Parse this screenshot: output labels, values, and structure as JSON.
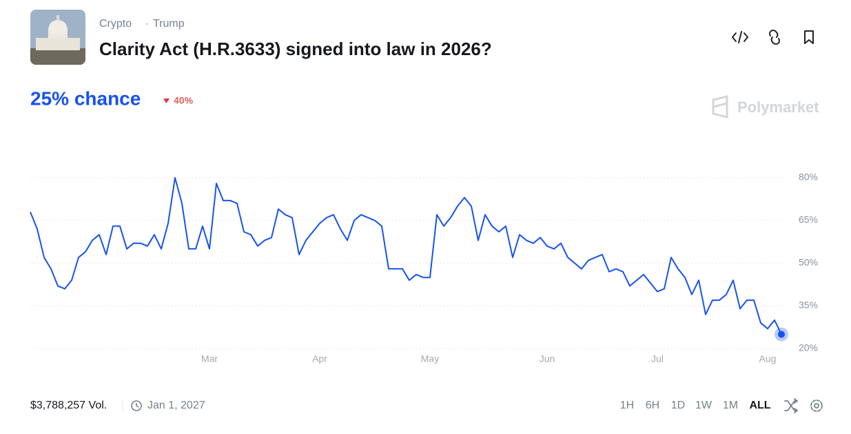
{
  "header": {
    "breadcrumb": [
      "Crypto",
      "Trump"
    ],
    "title": "Clarity Act (H.R.3633) signed into law in 2026?"
  },
  "chance": {
    "label": "25% chance",
    "change": "40%"
  },
  "brand": "Polymarket",
  "chart_data": {
    "type": "line",
    "categories": [
      null,
      null,
      null,
      null,
      null,
      null,
      null,
      null,
      null,
      null,
      null,
      null,
      null,
      null,
      null,
      null,
      null,
      null,
      null,
      null,
      null,
      null,
      null,
      null,
      null,
      null,
      "Mar",
      null,
      null,
      null,
      null,
      null,
      null,
      null,
      null,
      null,
      null,
      null,
      null,
      null,
      null,
      null,
      "Apr",
      null,
      null,
      null,
      null,
      null,
      null,
      null,
      null,
      null,
      null,
      null,
      null,
      null,
      null,
      null,
      "May",
      null,
      null,
      null,
      null,
      null,
      null,
      null,
      null,
      null,
      null,
      null,
      null,
      null,
      null,
      null,
      null,
      "Jun",
      null,
      null,
      null,
      null,
      null,
      null,
      null,
      null,
      null,
      null,
      null,
      null,
      null,
      null,
      null,
      "Jul",
      null,
      null,
      null,
      null,
      null,
      null,
      null,
      null,
      null,
      null,
      null,
      null,
      null,
      null,
      null,
      "Aug",
      null,
      null
    ],
    "series": [
      {
        "color": "#1652f0",
        "values": [
          68,
          62,
          52,
          48,
          42,
          41,
          44,
          52,
          54,
          58,
          60,
          53,
          63,
          63,
          55,
          57,
          57,
          56,
          60,
          55,
          64,
          80,
          71,
          55,
          55,
          63,
          55,
          78,
          72,
          72,
          71,
          61,
          60,
          56,
          58,
          59,
          69,
          67,
          66,
          53,
          58,
          61,
          64,
          66,
          67,
          62,
          58,
          65,
          67,
          66,
          65,
          63,
          48,
          48,
          48,
          44,
          46,
          45,
          45,
          67,
          63,
          66,
          70,
          73,
          70,
          58,
          67,
          63,
          61,
          63,
          52,
          60,
          58,
          57,
          59,
          56,
          55,
          57,
          52,
          50,
          48,
          51,
          52,
          53,
          47,
          48,
          47,
          42,
          44,
          46,
          43,
          40,
          41,
          52,
          48,
          45,
          39,
          44,
          32,
          37,
          37,
          39,
          44,
          34,
          37,
          37,
          29,
          27,
          30,
          25
        ]
      }
    ],
    "ylim": [
      20,
      80
    ],
    "yticks": [
      {
        "value": 20,
        "label": "20%"
      },
      {
        "value": 35,
        "label": "35%"
      },
      {
        "value": 50,
        "label": "50%"
      },
      {
        "value": 65,
        "label": "65%"
      },
      {
        "value": 80,
        "label": "80%"
      }
    ],
    "grid": true
  },
  "footer": {
    "volume": "$3,788,257 Vol.",
    "end_date": "Jan 1, 2027",
    "ranges": [
      "1H",
      "6H",
      "1D",
      "1W",
      "1M",
      "ALL"
    ]
  }
}
